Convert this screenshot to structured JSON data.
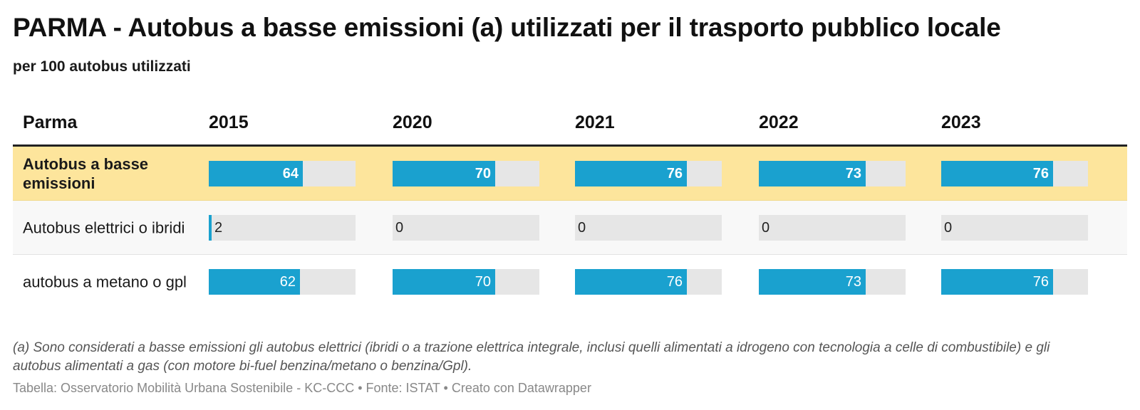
{
  "title": "PARMA - Autobus a basse emissioni (a) utilizzati per il trasporto pubblico locale",
  "subtitle": "per 100 autobus utilizzati",
  "colors": {
    "bar": "#1aa1cf",
    "track": "#e6e6e6",
    "highlight_row": "#fde59c"
  },
  "chart_data": {
    "type": "table",
    "title": "PARMA - Autobus a basse emissioni (a) utilizzati per il trasporto pubblico locale",
    "subtitle": "per 100 autobus utilizzati",
    "row_header": "Parma",
    "columns": [
      "2015",
      "2020",
      "2021",
      "2022",
      "2023"
    ],
    "scale_max": 100,
    "rows": [
      {
        "label": "Autobus a basse emissioni",
        "values": [
          64,
          70,
          76,
          73,
          76
        ],
        "highlight": true
      },
      {
        "label": "Autobus elettrici o ibridi",
        "values": [
          2,
          0,
          0,
          0,
          0
        ],
        "highlight": false
      },
      {
        "label": "autobus a metano o gpl",
        "values": [
          62,
          70,
          76,
          73,
          76
        ],
        "highlight": false
      }
    ]
  },
  "footnote": "(a) Sono considerati a basse emissioni gli autobus elettrici (ibridi o a trazione elettrica integrale, inclusi quelli alimentati a idrogeno con tecnologia a celle di combustibile) e gli autobus alimentati a gas (con motore bi-fuel benzina/metano o benzina/Gpl).",
  "source": "Tabella: Osservatorio Mobilità Urbana Sostenibile - KC-CCC • Fonte: ISTAT • Creato con Datawrapper"
}
